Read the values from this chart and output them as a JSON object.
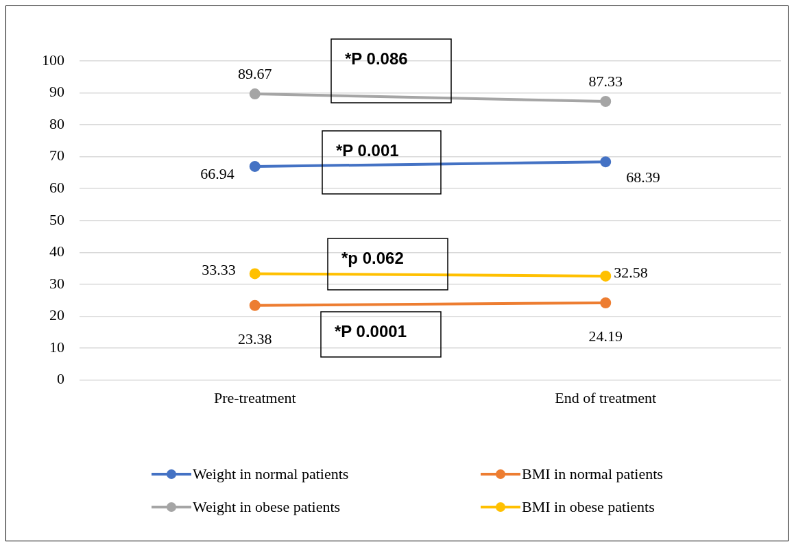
{
  "chart_data": {
    "type": "line",
    "categories": [
      "Pre-treatment",
      "End of treatment"
    ],
    "series": [
      {
        "name": "Weight in normal patients",
        "color": "#4472c4",
        "values": [
          66.94,
          68.39
        ]
      },
      {
        "name": "BMI in normal patients",
        "color": "#ed7d31",
        "values": [
          23.38,
          24.19
        ]
      },
      {
        "name": "Weight in obese patients",
        "color": "#a5a5a5",
        "values": [
          89.67,
          87.33
        ]
      },
      {
        "name": "BMI in obese patients",
        "color": "#ffc000",
        "values": [
          33.33,
          32.58
        ]
      }
    ],
    "ylim": [
      0,
      100
    ],
    "yticks": [
      0,
      10,
      20,
      30,
      40,
      50,
      60,
      70,
      80,
      90,
      100
    ],
    "grid": "y",
    "legend": "bottom",
    "marker": "circle",
    "line_style": "solid",
    "data_labels": true,
    "annotations": [
      "*P 0.086",
      "*P 0.001",
      "*p 0.062",
      "*P 0.0001"
    ]
  }
}
